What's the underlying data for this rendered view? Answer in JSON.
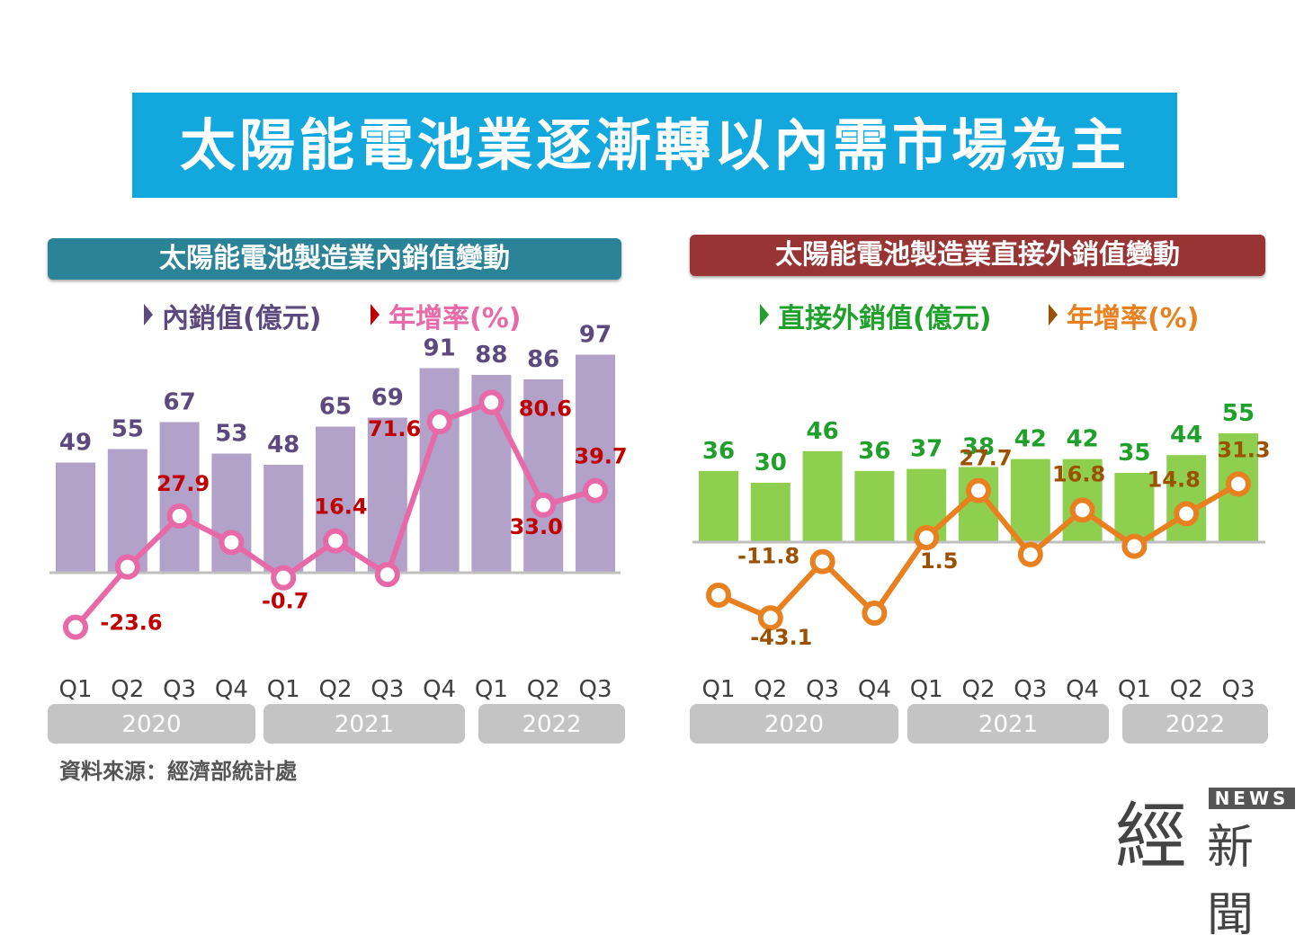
{
  "title": "太陽能電池業逐漸轉以內需市場為主",
  "source": "資料來源：經濟部統計處",
  "logo": {
    "big": "經",
    "news": "NEWS",
    "small": "新聞"
  },
  "chart_data": [
    {
      "type": "bar",
      "title": "太陽能電池製造業內銷值變動",
      "categories": [
        "Q1",
        "Q2",
        "Q3",
        "Q4",
        "Q1",
        "Q2",
        "Q3",
        "Q4",
        "Q1",
        "Q2",
        "Q3"
      ],
      "groups": [
        {
          "label": "2020",
          "span": 4
        },
        {
          "label": "2021",
          "span": 4
        },
        {
          "label": "2022",
          "span": 3
        }
      ],
      "series": [
        {
          "name": "內銷值(億元)",
          "type": "bar",
          "values": [
            49,
            55,
            67,
            53,
            48,
            65,
            69,
            91,
            88,
            86,
            97
          ],
          "color": "#b2a1c9",
          "label_color": "#5c4a7e"
        },
        {
          "name": "年增率(%)",
          "type": "line",
          "values": [
            -23.6,
            4.3,
            27.9,
            15.7,
            -0.7,
            16.4,
            0.8,
            71.6,
            80.6,
            33.0,
            39.7
          ],
          "labels": [
            "-23.6",
            null,
            "27.9",
            null,
            "-0.7",
            "16.4",
            null,
            "71.6",
            "80.6",
            "33.0",
            "39.7"
          ],
          "color": "#e869a8",
          "label_color": "#c00000"
        }
      ]
    },
    {
      "type": "bar",
      "title": "太陽能電池製造業直接外銷值變動",
      "categories": [
        "Q1",
        "Q2",
        "Q3",
        "Q4",
        "Q1",
        "Q2",
        "Q3",
        "Q4",
        "Q1",
        "Q2",
        "Q3"
      ],
      "groups": [
        {
          "label": "2020",
          "span": 4
        },
        {
          "label": "2021",
          "span": 4
        },
        {
          "label": "2022",
          "span": 3
        }
      ],
      "series": [
        {
          "name": "直接外銷值(億元)",
          "type": "bar",
          "values": [
            36,
            30,
            46,
            36,
            37,
            38,
            42,
            42,
            35,
            44,
            55
          ],
          "color": "#8fcf50",
          "label_color": "#1fa02b"
        },
        {
          "name": "年增率(%)",
          "type": "line",
          "values": [
            -30.5,
            -43.1,
            -11.8,
            -40.5,
            1.5,
            27.7,
            -7.9,
            16.8,
            -3.3,
            14.8,
            31.3
          ],
          "labels": [
            null,
            "-43.1",
            "-11.8",
            null,
            "1.5",
            "27.7",
            null,
            "16.8",
            null,
            "14.8",
            "31.3"
          ],
          "color": "#e8801f",
          "label_color": "#9c5100"
        }
      ]
    }
  ]
}
